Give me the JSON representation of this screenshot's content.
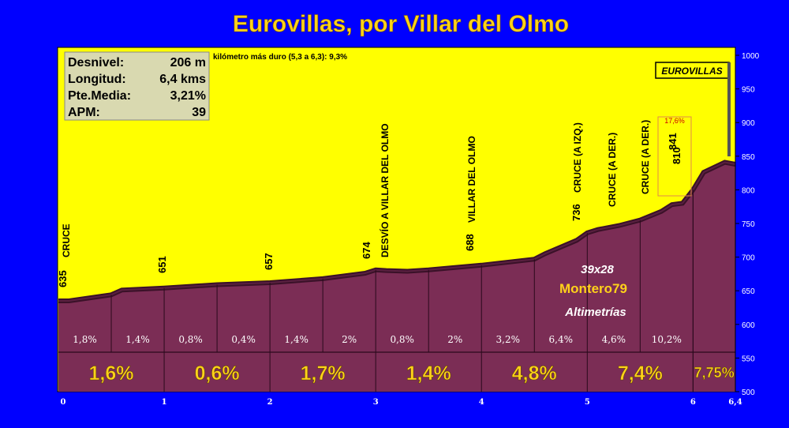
{
  "chart_data": {
    "type": "area",
    "title": "Eurovillas, por Villar del Olmo",
    "stats": [
      {
        "label": "Desnivel:",
        "value": "206 m"
      },
      {
        "label": "Longitud:",
        "value": "6,4 kms"
      },
      {
        "label": "Pte.Media:",
        "value": "3,21%"
      },
      {
        "label": "APM:",
        "value": "39"
      }
    ],
    "hardest_km": "kilómetro más duro (5,3 a 6,3):  9,3%",
    "finish_label": "EUROVILLAS",
    "x_ticks": [
      "0",
      "1",
      "2",
      "3",
      "4",
      "5",
      "6",
      "6,4"
    ],
    "x_tick_values": [
      0,
      1,
      2,
      3,
      4,
      5,
      6,
      6.4
    ],
    "y_ticks": [
      "500",
      "550",
      "600",
      "650",
      "700",
      "750",
      "800",
      "850",
      "900",
      "950",
      "1000"
    ],
    "y_tick_values": [
      500,
      550,
      600,
      650,
      700,
      750,
      800,
      850,
      900,
      950,
      1000
    ],
    "xlim": [
      0,
      6.4
    ],
    "ylim": [
      500,
      1000
    ],
    "profile": {
      "x": [
        0,
        0.1,
        0.5,
        0.6,
        1,
        1.5,
        2,
        2.5,
        2.9,
        3,
        3.1,
        3.3,
        3.5,
        4,
        4.5,
        4.6,
        4.9,
        5,
        5.1,
        5.3,
        5.5,
        5.7,
        5.8,
        5.9,
        6,
        6.1,
        6.3,
        6.4
      ],
      "y": [
        635,
        635,
        644,
        651,
        654,
        659,
        662,
        668,
        676,
        681,
        680,
        679,
        681,
        688,
        697,
        705,
        725,
        736,
        741,
        747,
        755,
        768,
        778,
        780,
        800,
        826,
        841,
        838
      ]
    },
    "segments_500m": [
      "1,8%",
      "1,4%",
      "0,8%",
      "0,4%",
      "1,4%",
      "2%",
      "0,8%",
      "2%",
      "3,2%",
      "6,4%",
      "4,6%",
      "10,2%"
    ],
    "segments_km": [
      "1,6%",
      "0,6%",
      "1,7%",
      "1,4%",
      "4,8%",
      "7,4%",
      "7,75%"
    ],
    "altitude_labels": [
      "635",
      "651",
      "657",
      "674",
      "688",
      "736",
      "810",
      "841"
    ],
    "place_labels": [
      "CRUCE",
      "DESVÍO A VILLAR DEL OLMO",
      "VILLAR DEL OLMO",
      "CRUCE (A IZQ.)",
      "CRUCE (A DER.)",
      "CRUCE (A DER.)"
    ],
    "max_gradient_mark": "17,6%",
    "credits": [
      "39x28",
      "Montero79",
      "Altimetrías"
    ],
    "colors": {
      "background": "#0000ff",
      "sky": "#ffff00",
      "profile": "#7b2d55",
      "profile_edge": "#3a1128",
      "title": "#ffd21a",
      "stats_box": "#d9d9b0"
    }
  }
}
